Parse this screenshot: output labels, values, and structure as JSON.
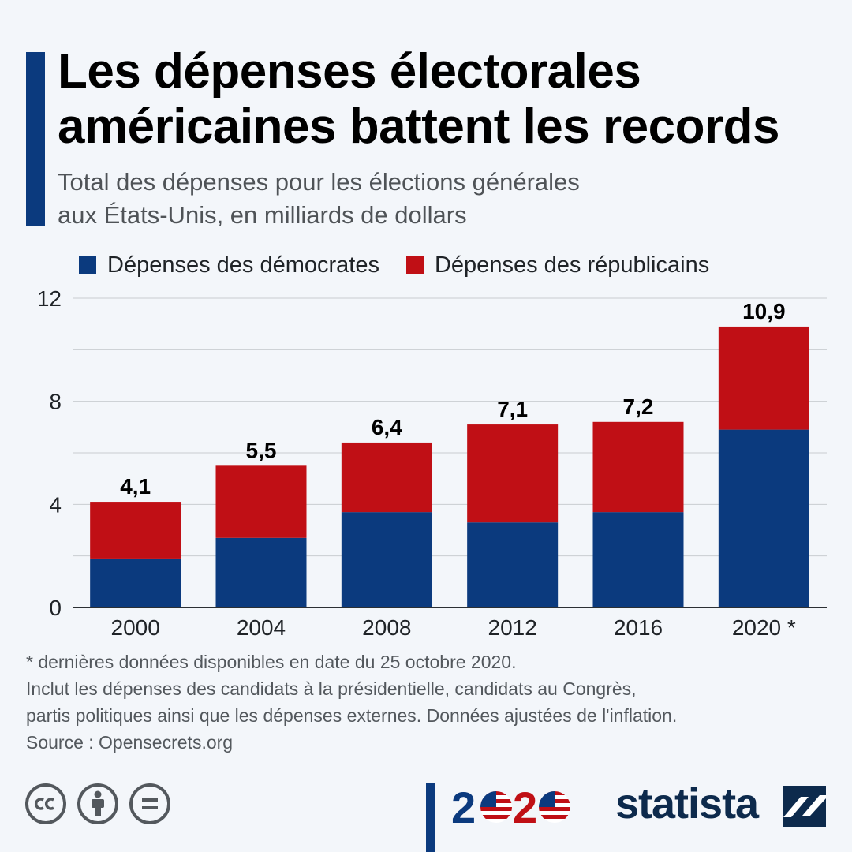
{
  "title": "Les dépenses électorales américaines battent les records",
  "subtitle_line1": "Total des dépenses pour les élections générales",
  "subtitle_line2": "aux États-Unis, en milliards de dollars",
  "colors": {
    "democrats": "#0b3a7e",
    "republicans": "#c00f15",
    "accent": "#0b3a7e",
    "grid": "#c9ccd0"
  },
  "chart_data": {
    "type": "bar",
    "stacked": true,
    "categories": [
      "2000",
      "2004",
      "2008",
      "2012",
      "2016",
      "2020 *"
    ],
    "series": [
      {
        "name": "Dépenses des démocrates",
        "values": [
          1.9,
          2.7,
          3.7,
          3.3,
          3.7,
          6.9
        ]
      },
      {
        "name": "Dépenses des républicains",
        "values": [
          2.2,
          2.8,
          2.7,
          3.8,
          3.5,
          4.0
        ]
      }
    ],
    "totals": [
      4.1,
      5.5,
      6.4,
      7.1,
      7.2,
      10.9
    ],
    "total_labels": [
      "4,1",
      "5,5",
      "6,4",
      "7,1",
      "7,2",
      "10,9"
    ],
    "ylim": [
      0,
      12
    ],
    "yticks": [
      0,
      4,
      8,
      12
    ],
    "grid": true,
    "legend_position": "top-left",
    "xlabel": "",
    "ylabel": ""
  },
  "footnotes": {
    "line1": "* dernières données disponibles en date du 25 octobre 2020.",
    "line2": "Inclut les dépenses des candidats à la présidentielle, candidats au Congrès,",
    "line3": "partis politiques ainsi que les dépenses externes. Données ajustées de l'inflation.",
    "source": "Source : Opensecrets.org"
  },
  "license_icons": [
    "cc-icon",
    "attribution-icon",
    "no-derivatives-icon"
  ],
  "logo_2020": {
    "digit_two": "2",
    "flag_icon": "us-flag-icon"
  },
  "brand": "statista"
}
